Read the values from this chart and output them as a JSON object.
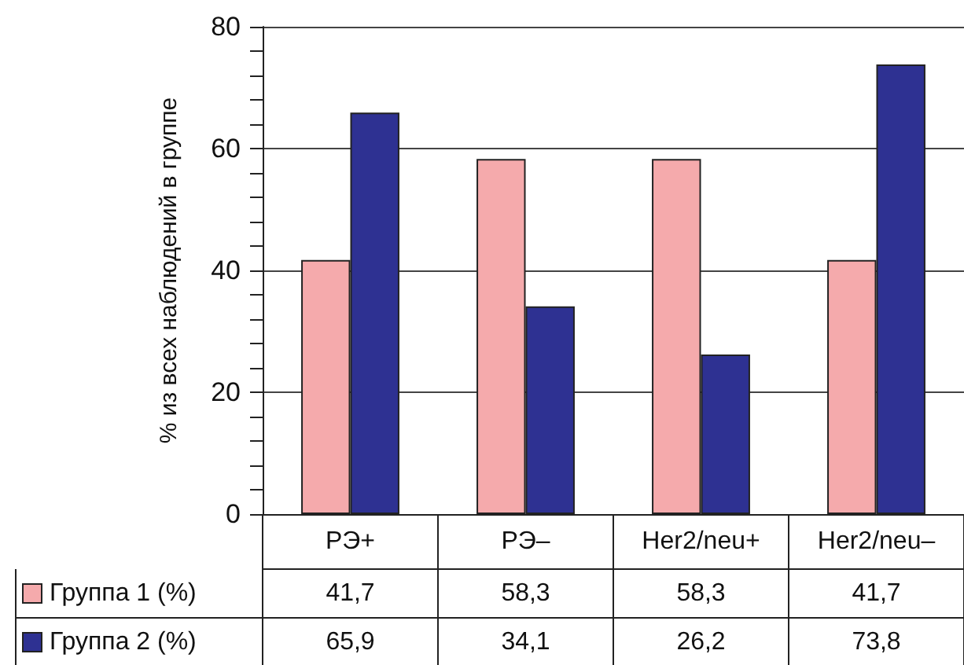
{
  "chart_data": {
    "type": "bar",
    "ylabel": "% из всех наблюдений в группе",
    "categories": [
      "РЭ+",
      "РЭ–",
      "Her2/neu+",
      "Her2/neu–"
    ],
    "series": [
      {
        "name": "Группа 1 (%)",
        "color": "#f5aaac",
        "values": [
          41.7,
          58.3,
          58.3,
          41.7
        ],
        "value_labels": [
          "41,7",
          "58,3",
          "58,3",
          "41,7"
        ]
      },
      {
        "name": "Группа 2 (%)",
        "color": "#2e3192",
        "values": [
          65.9,
          34.1,
          26.2,
          73.8
        ],
        "value_labels": [
          "65,9",
          "34,1",
          "26,2",
          "73,8"
        ]
      }
    ],
    "ylim": [
      0,
      80
    ],
    "yticks": [
      0,
      20,
      40,
      60,
      80
    ],
    "grid": "y",
    "legend": "bottom left"
  }
}
